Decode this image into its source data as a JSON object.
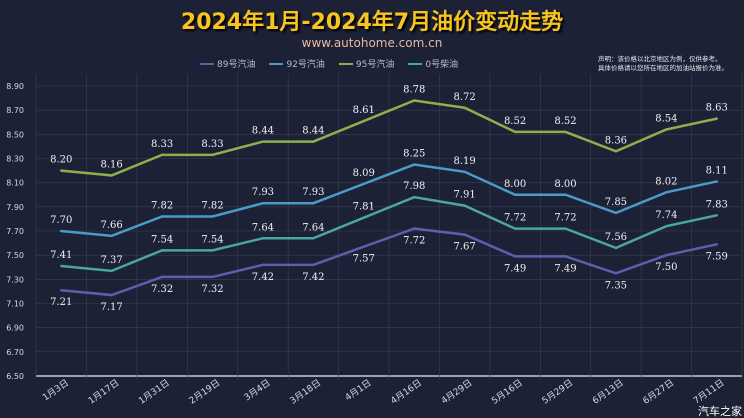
{
  "title": "2024年1月-2024年7月油价变动走势",
  "subtitle": "www.autohome.com.cn",
  "note": [
    "声明：该价格以北京地区为例，仅供参考。",
    "具体价格请以您所在地区的加油站报价为准。"
  ],
  "watermark": "汽车之家",
  "chart_data": {
    "type": "line",
    "title": "2024年1月-2024年7月油价变动走势",
    "categories": [
      "1月3日",
      "1月17日",
      "1月31日",
      "2月19日",
      "3月4日",
      "3月18日",
      "4月1日",
      "4月16日",
      "4月29日",
      "5月16日",
      "5月29日",
      "6月13日",
      "6月27日",
      "7月11日"
    ],
    "ylim": [
      6.5,
      8.9
    ],
    "yticks": [
      "6.50",
      "6.70",
      "6.90",
      "7.10",
      "7.30",
      "7.50",
      "7.70",
      "7.90",
      "8.10",
      "8.30",
      "8.50",
      "8.70",
      "8.90"
    ],
    "grid": true,
    "legend_position": "top",
    "series": [
      {
        "name": "89号汽油",
        "color": "#5b5fae",
        "label_pos": "below",
        "values": [
          7.21,
          7.17,
          7.32,
          7.32,
          7.42,
          7.42,
          7.57,
          7.72,
          7.67,
          7.49,
          7.49,
          7.35,
          7.5,
          7.59
        ]
      },
      {
        "name": "92号汽油",
        "color": "#4a9bc6",
        "label_pos": "above",
        "values": [
          7.7,
          7.66,
          7.82,
          7.82,
          7.93,
          7.93,
          8.09,
          8.25,
          8.19,
          8.0,
          8.0,
          7.85,
          8.02,
          8.11
        ]
      },
      {
        "name": "95号汽油",
        "color": "#8db04c",
        "label_pos": "above",
        "values": [
          8.2,
          8.16,
          8.33,
          8.33,
          8.44,
          8.44,
          8.61,
          8.78,
          8.72,
          8.52,
          8.52,
          8.36,
          8.54,
          8.63
        ]
      },
      {
        "name": "0号柴油",
        "color": "#4aa6a0",
        "label_pos": "above",
        "values": [
          7.41,
          7.37,
          7.54,
          7.54,
          7.64,
          7.64,
          7.81,
          7.98,
          7.91,
          7.72,
          7.72,
          7.56,
          7.74,
          7.83
        ]
      }
    ]
  }
}
